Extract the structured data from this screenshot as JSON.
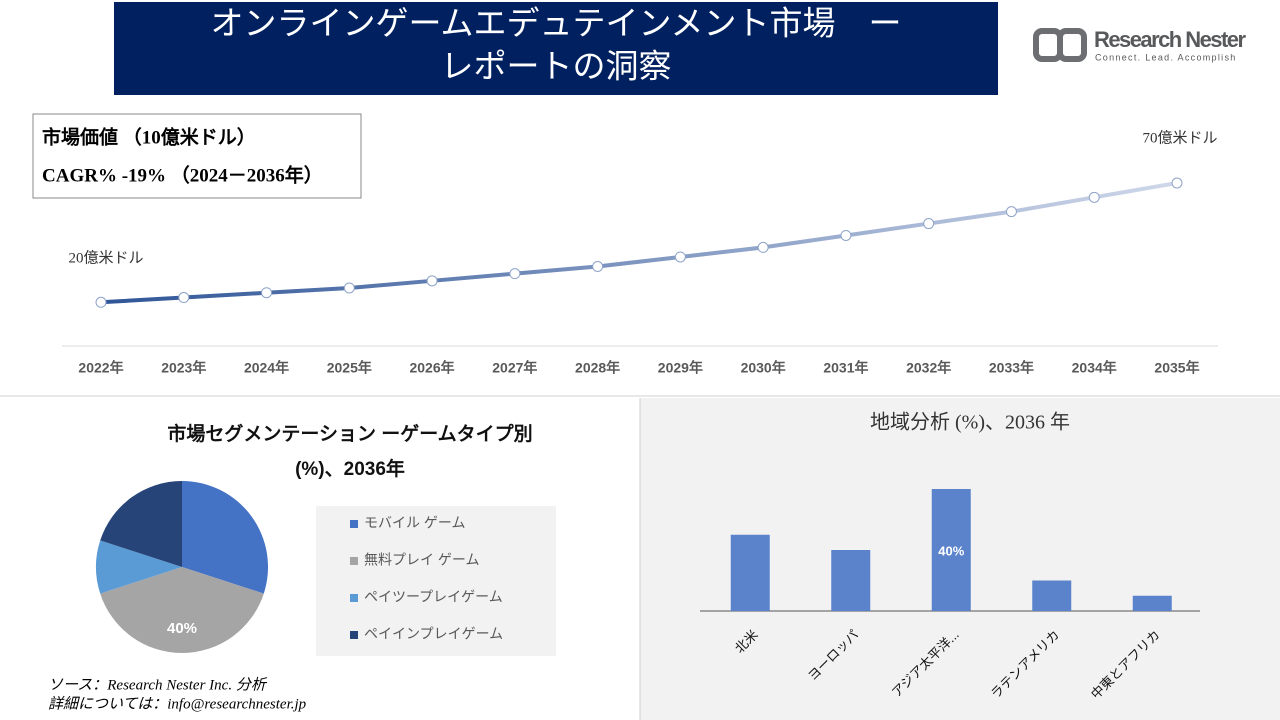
{
  "header": {
    "title_lines": [
      "オンラインゲームエデュテインメント市場　ー",
      "レポートの洞察"
    ]
  },
  "logo": {
    "name": "Research Nester",
    "tagline": "Connect. Lead. Accomplish"
  },
  "chart_data": [
    {
      "type": "line",
      "info_box": [
        "市場価値 （10億米ドル）",
        "CAGR% -19% （2024－2036年）"
      ],
      "categories": [
        "2022年",
        "2023年",
        "2024年",
        "2025年",
        "2026年",
        "2027年",
        "2028年",
        "2029年",
        "2030年",
        "2031年",
        "2032年",
        "2033年",
        "2034年",
        "2035年"
      ],
      "values": [
        20,
        22,
        24,
        26,
        29,
        32,
        35,
        39,
        43,
        48,
        53,
        58,
        64,
        70
      ],
      "value_labels": [
        "20億米ドル",
        null,
        null,
        null,
        null,
        null,
        null,
        null,
        null,
        null,
        null,
        null,
        null,
        "70億米ドル"
      ],
      "color": "#2f5597",
      "color_end": "#cfd8ea"
    },
    {
      "type": "pie",
      "title_lines": [
        "市場セグメンテーション ーゲームタイプ別",
        "(%)、2036年"
      ],
      "categories": [
        "モバイル ゲーム",
        "無料プレイ ゲーム",
        "ペイツープレイゲーム",
        "ペイインプレイゲーム"
      ],
      "values": [
        30,
        40,
        10,
        20
      ],
      "value_labels": [
        null,
        "40%",
        null,
        null
      ],
      "colors": [
        "#4472c4",
        "#a5a5a5",
        "#5b9bd5",
        "#264478"
      ]
    },
    {
      "type": "bar",
      "title": "地域分析 (%)、2036 年",
      "categories": [
        "北米",
        "ヨーロッパ",
        "アジア太平洋...",
        "ラテンアメリカ",
        "中東とアフリカ"
      ],
      "values": [
        25,
        20,
        40,
        10,
        5
      ],
      "value_labels": [
        null,
        null,
        "40%",
        null,
        null
      ],
      "color": "#5b83cc"
    }
  ],
  "source": [
    "ソース：Research Nester Inc. 分析",
    "詳細については：info@researchnester.jp"
  ]
}
